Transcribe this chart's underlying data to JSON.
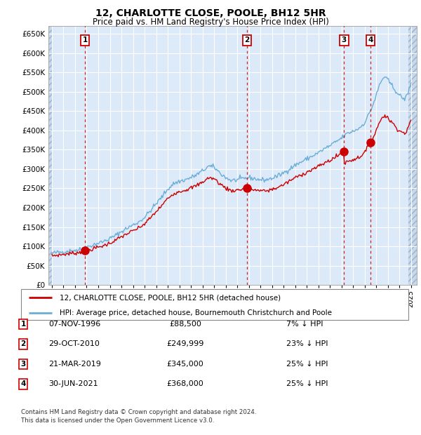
{
  "title": "12, CHARLOTTE CLOSE, POOLE, BH12 5HR",
  "subtitle": "Price paid vs. HM Land Registry's House Price Index (HPI)",
  "ylim": [
    0,
    670000
  ],
  "yticks": [
    0,
    50000,
    100000,
    150000,
    200000,
    250000,
    300000,
    350000,
    400000,
    450000,
    500000,
    550000,
    600000,
    650000
  ],
  "xlim_start": 1993.7,
  "xlim_end": 2025.5,
  "background_color": "#dce9f8",
  "grid_color": "#ffffff",
  "hpi_color": "#6baed6",
  "price_color": "#cc0000",
  "vline_color": "#cc0000",
  "transactions": [
    {
      "num": 1,
      "date": "07-NOV-1996",
      "year": 1996.85,
      "price": 88500,
      "pct": "7%"
    },
    {
      "num": 2,
      "date": "29-OCT-2010",
      "year": 2010.83,
      "price": 249999,
      "pct": "23%"
    },
    {
      "num": 3,
      "date": "21-MAR-2019",
      "year": 2019.22,
      "price": 345000,
      "pct": "25%"
    },
    {
      "num": 4,
      "date": "30-JUN-2021",
      "year": 2021.5,
      "price": 368000,
      "pct": "25%"
    }
  ],
  "legend_line1": "12, CHARLOTTE CLOSE, POOLE, BH12 5HR (detached house)",
  "legend_line2": "HPI: Average price, detached house, Bournemouth Christchurch and Poole",
  "footer": "Contains HM Land Registry data © Crown copyright and database right 2024.\nThis data is licensed under the Open Government Licence v3.0.",
  "table_rows": [
    [
      "1",
      "07-NOV-1996",
      "£88,500",
      "7% ↓ HPI"
    ],
    [
      "2",
      "29-OCT-2010",
      "£249,999",
      "23% ↓ HPI"
    ],
    [
      "3",
      "21-MAR-2019",
      "£345,000",
      "25% ↓ HPI"
    ],
    [
      "4",
      "30-JUN-2021",
      "£368,000",
      "25% ↓ HPI"
    ]
  ]
}
